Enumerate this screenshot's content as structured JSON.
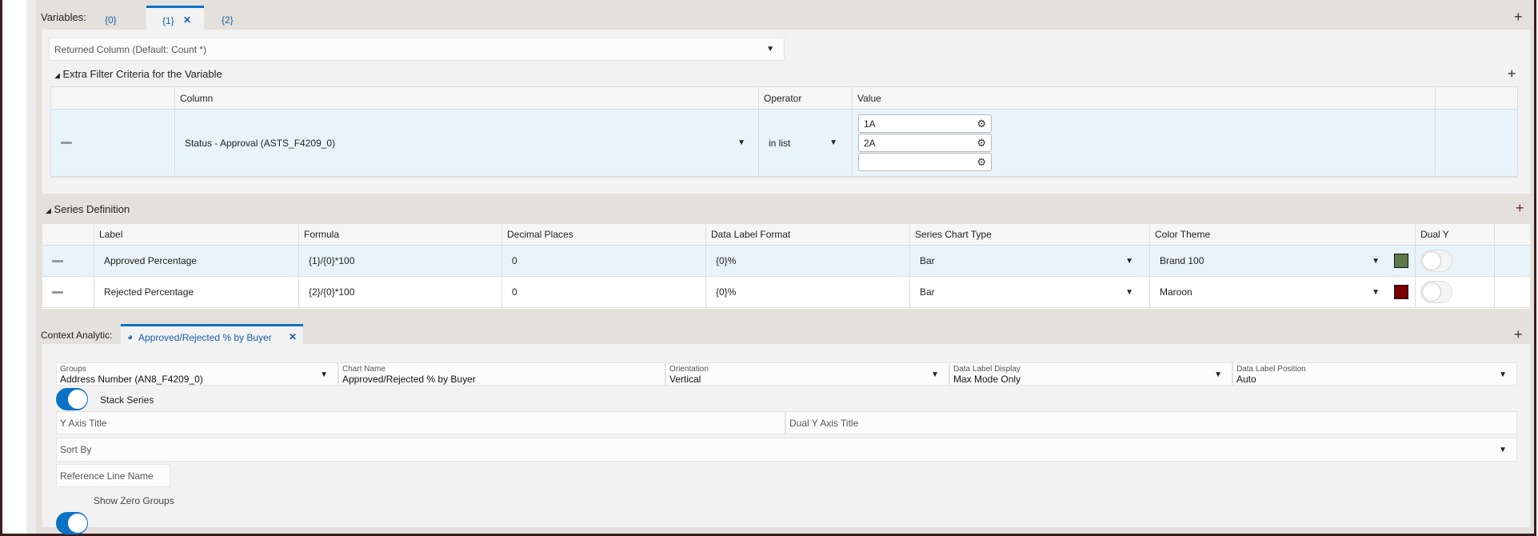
{
  "variables": {
    "label": "Variables:",
    "tabs": [
      {
        "label": "{0}"
      },
      {
        "label": "{1}",
        "active": true
      },
      {
        "label": "{2}"
      }
    ],
    "close_glyph": "✕",
    "add_glyph": "+",
    "returned_column": {
      "placeholder": "Returned Column (Default: Count *)"
    },
    "extra_filter": {
      "title": "Extra Filter Criteria for the Variable",
      "columns": [
        "Column",
        "Operator",
        "Value"
      ],
      "rows": [
        {
          "column": "Status - Approval (ASTS_F4209_0)",
          "operator": "in list",
          "values": [
            "1A",
            "2A",
            ""
          ]
        }
      ]
    }
  },
  "series": {
    "title": "Series Definition",
    "columns": [
      "Label",
      "Formula",
      "Decimal Places",
      "Data Label Format",
      "Series Chart Type",
      "Color Theme",
      "Dual Y"
    ],
    "rows": [
      {
        "label": "Approved Percentage",
        "formula": "{1}/{0}*100",
        "decimals": "0",
        "format": "{0}%",
        "chart_type": "Bar",
        "color_theme": "Brand 100",
        "color": "#5c7a4c",
        "dual_y": false
      },
      {
        "label": "Rejected Percentage",
        "formula": "{2}/{0}*100",
        "decimals": "0",
        "format": "{0}%",
        "chart_type": "Bar",
        "color_theme": "Maroon",
        "color": "#7a0000",
        "dual_y": false
      }
    ]
  },
  "context": {
    "label": "Context Analytic:",
    "tab": "Approved/Rejected % by Buyer",
    "fields": {
      "groups": {
        "label": "Groups",
        "value": "Address Number (AN8_F4209_0)"
      },
      "chart_name": {
        "label": "Chart Name",
        "value": "Approved/Rejected % by Buyer"
      },
      "orientation": {
        "label": "Orientation",
        "value": "Vertical"
      },
      "data_label_display": {
        "label": "Data Label Display",
        "value": "Max Mode Only"
      },
      "data_label_position": {
        "label": "Data Label Position",
        "value": "Auto"
      }
    },
    "stack_series": {
      "label": "Stack Series",
      "on": true
    },
    "y_axis_title": {
      "placeholder": "Y Axis Title"
    },
    "dual_y_axis_title": {
      "placeholder": "Dual Y Axis Title"
    },
    "sort_by": {
      "placeholder": "Sort By"
    },
    "reference_line": {
      "placeholder": "Reference Line Name"
    },
    "show_zero_groups": {
      "label": "Show Zero Groups",
      "on": true
    }
  },
  "accent": "#0a72c4"
}
